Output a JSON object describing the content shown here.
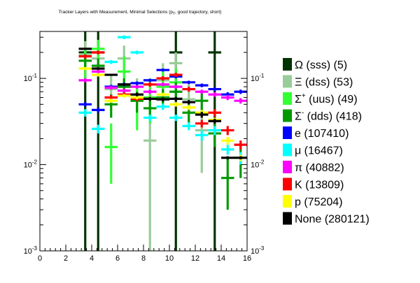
{
  "chart_data": {
    "type": "scatter",
    "title": "Tracker Layers with Measurement, Minimal Selections (p_T, good trajectory, short)",
    "title_parts": {
      "main": "Tracker Layers with Measurement, Minimal Selections (p",
      "sub": "T",
      "tail": ", good trajectory, short)"
    },
    "xlim": [
      0,
      16
    ],
    "ylim": [
      0.001,
      0.35
    ],
    "y_scale": "log",
    "x_ticks": [
      "0",
      "2",
      "4",
      "6",
      "8",
      "10",
      "12",
      "14",
      "16"
    ],
    "y_ticks_left": [
      {
        "value": 0.1,
        "base": "10",
        "exp": "-1"
      },
      {
        "value": 0.01,
        "base": "10",
        "exp": "-2"
      },
      {
        "value": 0.001,
        "base": "10",
        "exp": "-3"
      }
    ],
    "y_ticks_right": [
      {
        "value": 0.1,
        "base": "10",
        "exp": "-1"
      },
      {
        "value": 0.01,
        "base": "10",
        "exp": "-2"
      },
      {
        "value": 0.001,
        "base": "10",
        "exp": "-3"
      }
    ],
    "grid": false,
    "legend_position": "right",
    "series": [
      {
        "name": "Ω (sss) (5)",
        "symbol": "Ω",
        "sup": "",
        "label": " (sss) (5)",
        "color": "#003300",
        "points": [
          {
            "x": 3.5,
            "y": 0.2,
            "lo": 0.0005,
            "hi": 0.35
          },
          {
            "x": 4.5,
            "y": 0.2,
            "lo": 0.0005,
            "hi": 0.35
          },
          {
            "x": 10.5,
            "y": 0.2,
            "lo": 0.0005,
            "hi": 0.35
          },
          {
            "x": 13.5,
            "y": 0.2,
            "lo": 0.0005,
            "hi": 0.35
          }
        ]
      },
      {
        "name": "Ξ (dss) (53)",
        "symbol": "Ξ",
        "sup": "",
        "label": " (dss) (53)",
        "color": "#99cc99",
        "points": [
          {
            "x": 3.5,
            "y": 0.19,
            "lo": 0.13,
            "hi": 0.27
          },
          {
            "x": 4.5,
            "y": 0.17,
            "lo": 0.11,
            "hi": 0.24
          },
          {
            "x": 5.5,
            "y": 0.075,
            "lo": 0.045,
            "hi": 0.11
          },
          {
            "x": 6.5,
            "y": 0.17,
            "lo": 0.11,
            "hi": 0.24
          },
          {
            "x": 7.5,
            "y": 0.06,
            "lo": 0.03,
            "hi": 0.1
          },
          {
            "x": 8.5,
            "y": 0.019,
            "lo": 0.0005,
            "hi": 0.05
          },
          {
            "x": 9.5,
            "y": 0.095,
            "lo": 0.05,
            "hi": 0.15
          },
          {
            "x": 10.5,
            "y": 0.15,
            "lo": 0.1,
            "hi": 0.2
          },
          {
            "x": 11.5,
            "y": 0.057,
            "lo": 0.03,
            "hi": 0.09
          },
          {
            "x": 12.5,
            "y": 0.025,
            "lo": 0.008,
            "hi": 0.045
          }
        ]
      },
      {
        "name": "Σ+ (uus) (49)",
        "symbol": "Σ",
        "sup": "+",
        "label": " (uus) (49)",
        "color": "#33ff33",
        "points": [
          {
            "x": 3.5,
            "y": 0.16,
            "lo": 0.1,
            "hi": 0.22
          },
          {
            "x": 4.5,
            "y": 0.22,
            "lo": 0.15,
            "hi": 0.28
          },
          {
            "x": 5.5,
            "y": 0.016,
            "lo": 0.006,
            "hi": 0.03
          },
          {
            "x": 6.5,
            "y": 0.12,
            "lo": 0.07,
            "hi": 0.18
          },
          {
            "x": 7.5,
            "y": 0.055,
            "lo": 0.025,
            "hi": 0.09
          },
          {
            "x": 8.5,
            "y": 0.06,
            "lo": 0.03,
            "hi": 0.1
          },
          {
            "x": 9.5,
            "y": 0.08,
            "lo": 0.045,
            "hi": 0.13
          },
          {
            "x": 10.5,
            "y": 0.09,
            "lo": 0.055,
            "hi": 0.13
          }
        ]
      },
      {
        "name": "Σ- (dds) (418)",
        "symbol": "Σ",
        "sup": "-",
        "label": " (dds) (418)",
        "color": "#009900",
        "points": [
          {
            "x": 3.5,
            "y": 0.16,
            "lo": 0.13,
            "hi": 0.19
          },
          {
            "x": 4.5,
            "y": 0.14,
            "lo": 0.11,
            "hi": 0.17
          },
          {
            "x": 5.5,
            "y": 0.05,
            "lo": 0.035,
            "hi": 0.065
          },
          {
            "x": 6.5,
            "y": 0.08,
            "lo": 0.06,
            "hi": 0.1
          },
          {
            "x": 7.5,
            "y": 0.055,
            "lo": 0.04,
            "hi": 0.07
          },
          {
            "x": 8.5,
            "y": 0.045,
            "lo": 0.033,
            "hi": 0.06
          },
          {
            "x": 9.5,
            "y": 0.06,
            "lo": 0.047,
            "hi": 0.075
          },
          {
            "x": 10.5,
            "y": 0.07,
            "lo": 0.055,
            "hi": 0.09
          },
          {
            "x": 11.5,
            "y": 0.04,
            "lo": 0.03,
            "hi": 0.05
          },
          {
            "x": 12.5,
            "y": 0.055,
            "lo": 0.04,
            "hi": 0.07
          },
          {
            "x": 13.5,
            "y": 0.023,
            "lo": 0.016,
            "hi": 0.03
          },
          {
            "x": 14.5,
            "y": 0.007,
            "lo": 0.003,
            "hi": 0.012
          },
          {
            "x": 15.5,
            "y": 0.012,
            "lo": 0.007,
            "hi": 0.017
          }
        ]
      },
      {
        "name": "e (107410)",
        "symbol": "e",
        "sup": "",
        "label": " (107410)",
        "color": "#0000ff",
        "points": [
          {
            "x": 3.5,
            "y": 0.05,
            "lo": 0.047,
            "hi": 0.053
          },
          {
            "x": 4.5,
            "y": 0.043,
            "lo": 0.04,
            "hi": 0.046
          },
          {
            "x": 5.5,
            "y": 0.08,
            "lo": 0.076,
            "hi": 0.084
          },
          {
            "x": 6.5,
            "y": 0.085,
            "lo": 0.081,
            "hi": 0.089
          },
          {
            "x": 7.5,
            "y": 0.088,
            "lo": 0.084,
            "hi": 0.092
          },
          {
            "x": 8.5,
            "y": 0.095,
            "lo": 0.091,
            "hi": 0.099
          },
          {
            "x": 9.5,
            "y": 0.125,
            "lo": 0.12,
            "hi": 0.13
          },
          {
            "x": 10.5,
            "y": 0.105,
            "lo": 0.1,
            "hi": 0.11
          },
          {
            "x": 11.5,
            "y": 0.09,
            "lo": 0.086,
            "hi": 0.094
          },
          {
            "x": 12.5,
            "y": 0.083,
            "lo": 0.079,
            "hi": 0.087
          },
          {
            "x": 13.5,
            "y": 0.075,
            "lo": 0.071,
            "hi": 0.079
          },
          {
            "x": 14.5,
            "y": 0.065,
            "lo": 0.061,
            "hi": 0.069
          },
          {
            "x": 15.5,
            "y": 0.07,
            "lo": 0.066,
            "hi": 0.074
          }
        ]
      },
      {
        "name": "μ (16467)",
        "symbol": "μ",
        "sup": "",
        "label": " (16467)",
        "color": "#00ffff",
        "points": [
          {
            "x": 3.5,
            "y": 0.04,
            "lo": 0.036,
            "hi": 0.044
          },
          {
            "x": 4.5,
            "y": 0.026,
            "lo": 0.023,
            "hi": 0.029
          },
          {
            "x": 5.5,
            "y": 0.155,
            "lo": 0.147,
            "hi": 0.163
          },
          {
            "x": 6.5,
            "y": 0.3,
            "lo": 0.285,
            "hi": 0.315
          },
          {
            "x": 7.5,
            "y": 0.2,
            "lo": 0.19,
            "hi": 0.21
          },
          {
            "x": 8.5,
            "y": 0.035,
            "lo": 0.032,
            "hi": 0.038
          },
          {
            "x": 9.5,
            "y": 0.047,
            "lo": 0.043,
            "hi": 0.051
          },
          {
            "x": 10.5,
            "y": 0.035,
            "lo": 0.032,
            "hi": 0.038
          },
          {
            "x": 11.5,
            "y": 0.028,
            "lo": 0.025,
            "hi": 0.031
          },
          {
            "x": 12.5,
            "y": 0.022,
            "lo": 0.019,
            "hi": 0.025
          },
          {
            "x": 13.5,
            "y": 0.025,
            "lo": 0.022,
            "hi": 0.028
          },
          {
            "x": 14.5,
            "y": 0.015,
            "lo": 0.013,
            "hi": 0.017
          },
          {
            "x": 15.5,
            "y": 0.012,
            "lo": 0.01,
            "hi": 0.014
          }
        ]
      },
      {
        "name": "π (40882)",
        "symbol": "π",
        "sup": "",
        "label": " (40882)",
        "color": "#ff00ff",
        "points": [
          {
            "x": 3.5,
            "y": 0.095,
            "lo": 0.09,
            "hi": 0.1
          },
          {
            "x": 4.5,
            "y": 0.12,
            "lo": 0.114,
            "hi": 0.126
          },
          {
            "x": 5.5,
            "y": 0.078,
            "lo": 0.074,
            "hi": 0.082
          },
          {
            "x": 6.5,
            "y": 0.072,
            "lo": 0.068,
            "hi": 0.076
          },
          {
            "x": 7.5,
            "y": 0.08,
            "lo": 0.076,
            "hi": 0.084
          },
          {
            "x": 8.5,
            "y": 0.07,
            "lo": 0.066,
            "hi": 0.074
          },
          {
            "x": 9.5,
            "y": 0.085,
            "lo": 0.081,
            "hi": 0.089
          },
          {
            "x": 10.5,
            "y": 0.08,
            "lo": 0.076,
            "hi": 0.084
          },
          {
            "x": 11.5,
            "y": 0.075,
            "lo": 0.071,
            "hi": 0.079
          },
          {
            "x": 12.5,
            "y": 0.07,
            "lo": 0.066,
            "hi": 0.074
          },
          {
            "x": 13.5,
            "y": 0.065,
            "lo": 0.061,
            "hi": 0.069
          },
          {
            "x": 14.5,
            "y": 0.06,
            "lo": 0.056,
            "hi": 0.064
          },
          {
            "x": 15.5,
            "y": 0.055,
            "lo": 0.051,
            "hi": 0.059
          }
        ]
      },
      {
        "name": "K (13809)",
        "symbol": "K",
        "sup": "",
        "label": " (13809)",
        "color": "#ff0000",
        "points": [
          {
            "x": 3.5,
            "y": 0.18,
            "lo": 0.17,
            "hi": 0.19
          },
          {
            "x": 4.5,
            "y": 0.2,
            "lo": 0.19,
            "hi": 0.21
          },
          {
            "x": 5.5,
            "y": 0.06,
            "lo": 0.056,
            "hi": 0.064
          },
          {
            "x": 6.5,
            "y": 0.065,
            "lo": 0.061,
            "hi": 0.069
          },
          {
            "x": 7.5,
            "y": 0.058,
            "lo": 0.054,
            "hi": 0.062
          },
          {
            "x": 8.5,
            "y": 0.085,
            "lo": 0.08,
            "hi": 0.09
          },
          {
            "x": 9.5,
            "y": 0.1,
            "lo": 0.094,
            "hi": 0.106
          },
          {
            "x": 10.5,
            "y": 0.11,
            "lo": 0.104,
            "hi": 0.116
          },
          {
            "x": 11.5,
            "y": 0.075,
            "lo": 0.07,
            "hi": 0.08
          },
          {
            "x": 12.5,
            "y": 0.03,
            "lo": 0.027,
            "hi": 0.033
          },
          {
            "x": 13.5,
            "y": 0.04,
            "lo": 0.036,
            "hi": 0.044
          },
          {
            "x": 14.5,
            "y": 0.025,
            "lo": 0.022,
            "hi": 0.028
          },
          {
            "x": 15.5,
            "y": 0.017,
            "lo": 0.015,
            "hi": 0.019
          }
        ]
      },
      {
        "name": "p (75204)",
        "symbol": "p",
        "sup": "",
        "label": " (75204)",
        "color": "#ffff00",
        "points": [
          {
            "x": 3.5,
            "y": 0.13,
            "lo": 0.125,
            "hi": 0.135
          },
          {
            "x": 4.5,
            "y": 0.11,
            "lo": 0.105,
            "hi": 0.115
          },
          {
            "x": 5.5,
            "y": 0.055,
            "lo": 0.052,
            "hi": 0.058
          },
          {
            "x": 6.5,
            "y": 0.063,
            "lo": 0.06,
            "hi": 0.066
          },
          {
            "x": 7.5,
            "y": 0.06,
            "lo": 0.057,
            "hi": 0.063
          },
          {
            "x": 8.5,
            "y": 0.058,
            "lo": 0.055,
            "hi": 0.061
          },
          {
            "x": 9.5,
            "y": 0.065,
            "lo": 0.062,
            "hi": 0.068
          },
          {
            "x": 10.5,
            "y": 0.05,
            "lo": 0.047,
            "hi": 0.053
          },
          {
            "x": 11.5,
            "y": 0.046,
            "lo": 0.043,
            "hi": 0.049
          },
          {
            "x": 12.5,
            "y": 0.04,
            "lo": 0.037,
            "hi": 0.043
          },
          {
            "x": 13.5,
            "y": 0.033,
            "lo": 0.031,
            "hi": 0.035
          },
          {
            "x": 14.5,
            "y": 0.019,
            "lo": 0.017,
            "hi": 0.021
          },
          {
            "x": 15.5,
            "y": 0.012,
            "lo": 0.011,
            "hi": 0.013
          }
        ]
      },
      {
        "name": "None (280121)",
        "symbol": "None",
        "sup": "",
        "label": " (280121)",
        "color": "#000000",
        "points": [
          {
            "x": 3.5,
            "y": 0.22,
            "lo": 0.215,
            "hi": 0.225
          },
          {
            "x": 4.5,
            "y": 0.13,
            "lo": 0.126,
            "hi": 0.134
          },
          {
            "x": 5.5,
            "y": 0.11,
            "lo": 0.107,
            "hi": 0.113
          },
          {
            "x": 6.5,
            "y": 0.085,
            "lo": 0.082,
            "hi": 0.088
          },
          {
            "x": 7.5,
            "y": 0.065,
            "lo": 0.062,
            "hi": 0.068
          },
          {
            "x": 8.5,
            "y": 0.058,
            "lo": 0.055,
            "hi": 0.061
          },
          {
            "x": 9.5,
            "y": 0.057,
            "lo": 0.054,
            "hi": 0.06
          },
          {
            "x": 10.5,
            "y": 0.058,
            "lo": 0.055,
            "hi": 0.061
          },
          {
            "x": 11.5,
            "y": 0.053,
            "lo": 0.05,
            "hi": 0.056
          },
          {
            "x": 12.5,
            "y": 0.038,
            "lo": 0.035,
            "hi": 0.041
          },
          {
            "x": 13.5,
            "y": 0.032,
            "lo": 0.03,
            "hi": 0.034
          },
          {
            "x": 14.5,
            "y": 0.012,
            "lo": 0.0115,
            "hi": 0.0125
          },
          {
            "x": 15.5,
            "y": 0.012,
            "lo": 0.0115,
            "hi": 0.0125
          }
        ]
      }
    ]
  }
}
